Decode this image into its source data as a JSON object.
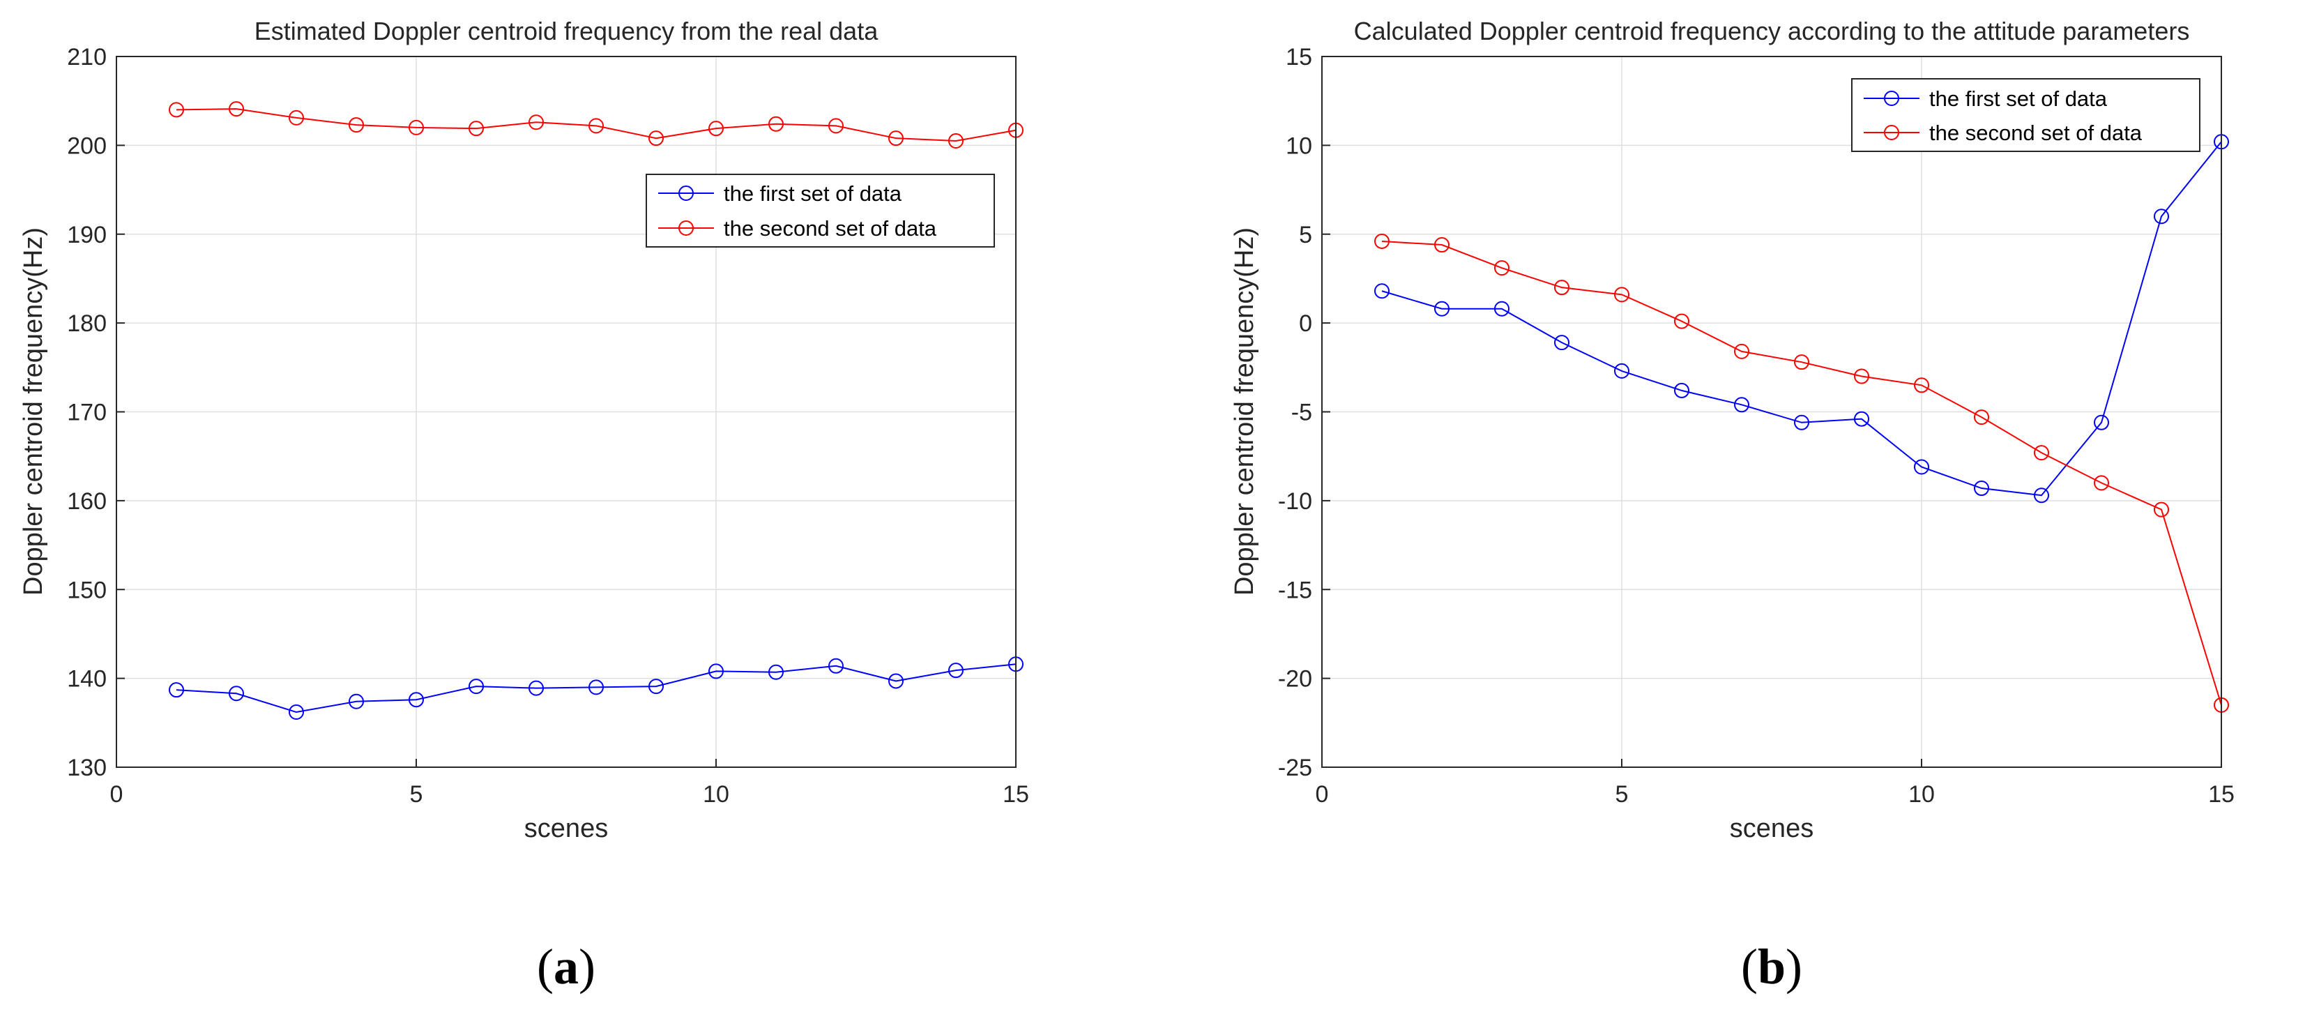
{
  "chart_data": [
    {
      "type": "line",
      "panel": "a",
      "title": "Estimated Doppler centroid frequency from the real data",
      "xlabel": "scenes",
      "ylabel": "Doppler centroid frequency(Hz)",
      "xlim": [
        0,
        15
      ],
      "ylim": [
        130,
        210
      ],
      "xticks": [
        0,
        5,
        10,
        15
      ],
      "yticks": [
        130,
        140,
        150,
        160,
        170,
        180,
        190,
        200,
        210
      ],
      "grid": true,
      "legend": "upper-right",
      "x": [
        1,
        2,
        3,
        4,
        5,
        6,
        7,
        8,
        9,
        10,
        11,
        12,
        13,
        14,
        15
      ],
      "series": [
        {
          "name": "the first set of data",
          "color": "#0000ff",
          "values": [
            138.7,
            138.3,
            136.2,
            137.4,
            137.6,
            139.1,
            138.9,
            139.0,
            139.1,
            140.8,
            140.7,
            141.4,
            139.7,
            140.9,
            141.6
          ]
        },
        {
          "name": "the second set of data",
          "color": "#ff0000",
          "values": [
            204.0,
            204.1,
            203.1,
            202.3,
            202.0,
            201.9,
            202.6,
            202.2,
            200.8,
            201.9,
            202.4,
            202.2,
            200.8,
            200.5,
            201.7
          ]
        }
      ]
    },
    {
      "type": "line",
      "panel": "b",
      "title": "Calculated Doppler centroid frequency according to the attitude parameters",
      "xlabel": "scenes",
      "ylabel": "Doppler centroid frequency(Hz)",
      "xlim": [
        0,
        15
      ],
      "ylim": [
        -25,
        15
      ],
      "xticks": [
        0,
        5,
        10,
        15
      ],
      "yticks": [
        -25,
        -20,
        -15,
        -10,
        -5,
        0,
        5,
        10,
        15
      ],
      "grid": true,
      "legend": "upper-right",
      "x": [
        1,
        2,
        3,
        4,
        5,
        6,
        7,
        8,
        9,
        10,
        11,
        12,
        13,
        14,
        15
      ],
      "series": [
        {
          "name": "the first set of data",
          "color": "#0000ff",
          "values": [
            1.8,
            0.8,
            0.8,
            -1.1,
            -2.7,
            -3.8,
            -4.6,
            -5.6,
            -5.4,
            -8.1,
            -9.3,
            -9.7,
            -5.6,
            6.0,
            10.2
          ]
        },
        {
          "name": "the second set of data",
          "color": "#ff0000",
          "values": [
            4.6,
            4.4,
            3.1,
            2.0,
            1.6,
            0.1,
            -1.6,
            -2.2,
            -3.0,
            -3.5,
            -5.3,
            -7.3,
            -9.0,
            -10.5,
            -21.5
          ]
        }
      ]
    }
  ],
  "captions": [
    "(a)",
    "(b)"
  ]
}
